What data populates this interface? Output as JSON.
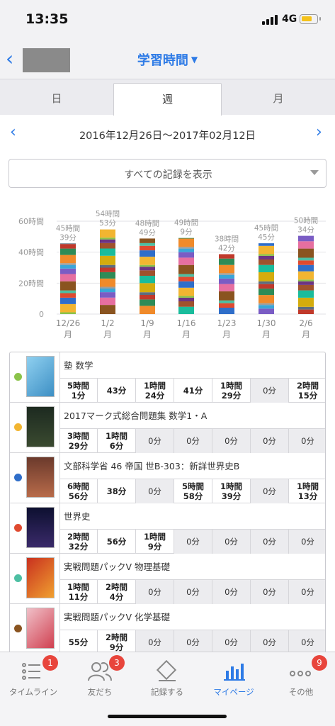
{
  "status": {
    "time": "13:35",
    "network": "4G",
    "battery_level": 0.75
  },
  "nav": {
    "title": "学習時間",
    "back_icon": "chevron-left-icon"
  },
  "tabs": [
    {
      "label": "日"
    },
    {
      "label": "週"
    },
    {
      "label": "月"
    }
  ],
  "active_tab": "週",
  "range": {
    "text": "2016年12月26日〜2017年02月12日"
  },
  "filter": {
    "label": "すべての記録を表示"
  },
  "chart_data": {
    "type": "bar",
    "stacked": true,
    "yticks": [
      "60時間",
      "40時間",
      "20時間",
      "0"
    ],
    "ylim": [
      0,
      60
    ],
    "categories": [
      "12/26\n月",
      "1/2\n月",
      "1/9\n月",
      "1/16\n月",
      "1/23\n月",
      "1/30\n月",
      "2/6\n月"
    ],
    "total_labels": [
      [
        "45時間",
        "39分"
      ],
      [
        "54時間",
        "53分"
      ],
      [
        "48時間",
        "49分"
      ],
      [
        "49時間",
        "9分"
      ],
      [
        "38時間",
        "42分"
      ],
      [
        "45時間",
        "45分"
      ],
      [
        "50時間",
        "34分"
      ]
    ],
    "values": [
      45.65,
      54.88,
      48.82,
      49.15,
      38.7,
      45.75,
      50.57
    ],
    "grid": true
  },
  "records": [
    {
      "name": "塾 数学",
      "color": "#8bc34a",
      "cells": [
        [
          "5時間",
          "1分"
        ],
        [
          "43分"
        ],
        [
          "1時間",
          "24分"
        ],
        [
          "41分"
        ],
        [
          "1時間",
          "29分"
        ],
        [
          "0分"
        ],
        [
          "2時間",
          "15分"
        ]
      ]
    },
    {
      "name": "2017マーク式総合問題集 数学1・A",
      "color": "#f2b531",
      "cells": [
        [
          "3時間",
          "29分"
        ],
        [
          "1時間",
          "6分"
        ],
        [
          "0分"
        ],
        [
          "0分"
        ],
        [
          "0分"
        ],
        [
          "0分"
        ],
        [
          "0分"
        ]
      ]
    },
    {
      "name": "文部科学省 46 帝国 世B-303：新詳世界史B",
      "color": "#2f6ec9",
      "cells": [
        [
          "6時間",
          "56分"
        ],
        [
          "38分"
        ],
        [
          "0分"
        ],
        [
          "5時間",
          "58分"
        ],
        [
          "1時間",
          "39分"
        ],
        [
          "0分"
        ],
        [
          "1時間",
          "13分"
        ]
      ]
    },
    {
      "name": "世界史",
      "color": "#e04a2f",
      "cells": [
        [
          "2時間",
          "32分"
        ],
        [
          "56分"
        ],
        [
          "1時間",
          "9分"
        ],
        [
          "0分"
        ],
        [
          "0分"
        ],
        [
          "0分"
        ],
        [
          "0分"
        ]
      ]
    },
    {
      "name": "実戦問題パックV 物理基礎",
      "color": "#4dbfa3",
      "cells": [
        [
          "1時間",
          "11分"
        ],
        [
          "2時間",
          "4分"
        ],
        [
          "0分"
        ],
        [
          "0分"
        ],
        [
          "0分"
        ],
        [
          "0分"
        ],
        [
          "0分"
        ]
      ]
    },
    {
      "name": "実戦問題パックV 化学基礎",
      "color": "#8a5420",
      "cells": [
        [
          "55分"
        ],
        [
          "2時間",
          "9分"
        ],
        [
          "0分"
        ],
        [
          "0分"
        ],
        [
          "0分"
        ],
        [
          "0分"
        ],
        [
          "0分"
        ]
      ]
    }
  ],
  "tabbar": [
    {
      "label": "タイムライン",
      "icon": "list-icon",
      "badge": "1"
    },
    {
      "label": "友だち",
      "icon": "friends-icon",
      "badge": "3"
    },
    {
      "label": "記録する",
      "icon": "pencil-icon",
      "badge": ""
    },
    {
      "label": "マイページ",
      "icon": "bar-chart-icon",
      "badge": ""
    },
    {
      "label": "その他",
      "icon": "more-icon",
      "badge": "9"
    }
  ],
  "colors": {
    "accent": "#2e7be6",
    "badge": "#e8453c"
  }
}
